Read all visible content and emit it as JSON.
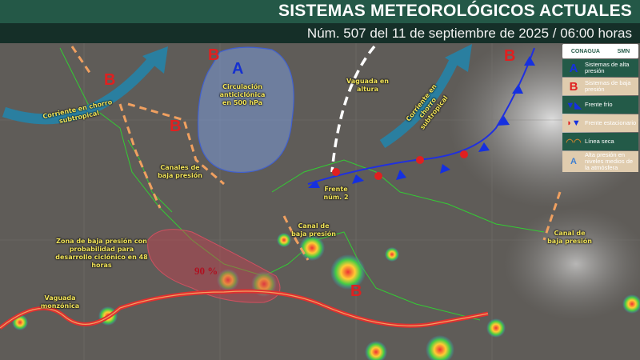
{
  "header": {
    "title": "SISTEMAS METEOROLÓGICOS ACTUALES",
    "subtitle": "Núm. 507 del 11 de septiembre de 2025 / 06:00 horas"
  },
  "logos": {
    "conagua": "CONAGUA",
    "smn": "SMN"
  },
  "legend": [
    {
      "icon": "A",
      "label": "Sistemas de alta presión",
      "color": "#1020c0"
    },
    {
      "icon": "B",
      "label": "Sistemas de baja presión",
      "color": "#e02020"
    },
    {
      "icon": "cold-front-icon",
      "label": "Frente frío"
    },
    {
      "icon": "stationary-front-icon",
      "label": "Frente estacionario"
    },
    {
      "icon": "dry-line-icon",
      "label": "Línea seca"
    },
    {
      "icon": "A",
      "label": "Alta presión en niveles medios de la atmósfera"
    }
  ],
  "map_labels": {
    "jet1": "Corriente en chorro subtropical",
    "jet2": "Corriente en chorro subtropical",
    "circ": "Circulación anticiclónica en 500 hPa",
    "vaguada_altura": "Vaguada en altura",
    "canales": "Canales de baja presión",
    "frente": "Frente núm. 2",
    "canal1": "Canal de baja presión",
    "canal2": "Canal de baja presión",
    "zona": "Zona de baja presión con probabilidad para desarrollo ciclónico en 48 horas",
    "prob": "90 %",
    "monzonica": "Vaguada monzónica",
    "A": "A",
    "B": "B"
  }
}
